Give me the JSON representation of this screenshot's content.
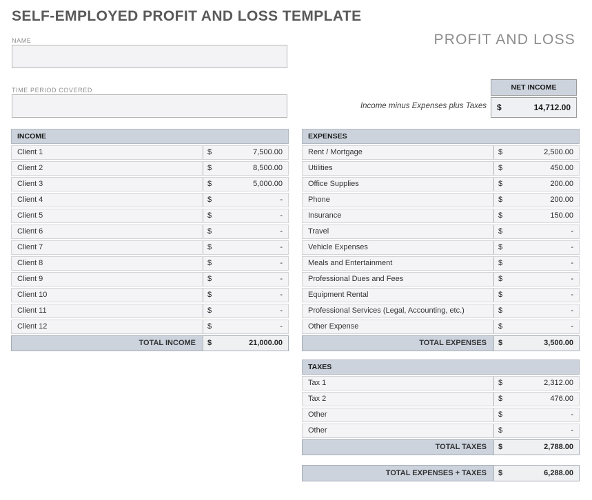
{
  "page": {
    "title": "SELF-EMPLOYED PROFIT AND LOSS TEMPLATE",
    "doc_type": "PROFIT AND LOSS"
  },
  "fields": {
    "name": {
      "label": "NAME",
      "value": ""
    },
    "time_period": {
      "label": "TIME PERIOD COVERED",
      "value": ""
    }
  },
  "net_income": {
    "header": "NET INCOME",
    "caption": "Income minus Expenses plus Taxes",
    "currency": "$",
    "value": "14,712.00"
  },
  "income": {
    "header": "INCOME",
    "rows": [
      {
        "label": "Client 1",
        "currency": "$",
        "amount": "7,500.00"
      },
      {
        "label": "Client 2",
        "currency": "$",
        "amount": "8,500.00"
      },
      {
        "label": "Client 3",
        "currency": "$",
        "amount": "5,000.00"
      },
      {
        "label": "Client 4",
        "currency": "$",
        "amount": "-"
      },
      {
        "label": "Client 5",
        "currency": "$",
        "amount": "-"
      },
      {
        "label": "Client 6",
        "currency": "$",
        "amount": "-"
      },
      {
        "label": "Client 7",
        "currency": "$",
        "amount": "-"
      },
      {
        "label": "Client 8",
        "currency": "$",
        "amount": "-"
      },
      {
        "label": "Client 9",
        "currency": "$",
        "amount": "-"
      },
      {
        "label": "Client 10",
        "currency": "$",
        "amount": "-"
      },
      {
        "label": "Client 11",
        "currency": "$",
        "amount": "-"
      },
      {
        "label": "Client 12",
        "currency": "$",
        "amount": "-"
      }
    ],
    "total": {
      "label": "TOTAL INCOME",
      "currency": "$",
      "amount": "21,000.00"
    }
  },
  "expenses": {
    "header": "EXPENSES",
    "rows": [
      {
        "label": "Rent / Mortgage",
        "currency": "$",
        "amount": "2,500.00"
      },
      {
        "label": "Utilities",
        "currency": "$",
        "amount": "450.00"
      },
      {
        "label": "Office Supplies",
        "currency": "$",
        "amount": "200.00"
      },
      {
        "label": "Phone",
        "currency": "$",
        "amount": "200.00"
      },
      {
        "label": "Insurance",
        "currency": "$",
        "amount": "150.00"
      },
      {
        "label": "Travel",
        "currency": "$",
        "amount": "-"
      },
      {
        "label": "Vehicle Expenses",
        "currency": "$",
        "amount": "-"
      },
      {
        "label": "Meals and Entertainment",
        "currency": "$",
        "amount": "-"
      },
      {
        "label": "Professional Dues and Fees",
        "currency": "$",
        "amount": "-"
      },
      {
        "label": "Equipment Rental",
        "currency": "$",
        "amount": "-"
      },
      {
        "label": "Professional Services (Legal, Accounting, etc.)",
        "currency": "$",
        "amount": "-"
      },
      {
        "label": "Other Expense",
        "currency": "$",
        "amount": "-"
      }
    ],
    "total": {
      "label": "TOTAL EXPENSES",
      "currency": "$",
      "amount": "3,500.00"
    }
  },
  "taxes": {
    "header": "TAXES",
    "rows": [
      {
        "label": "Tax 1",
        "currency": "$",
        "amount": "2,312.00"
      },
      {
        "label": "Tax 2",
        "currency": "$",
        "amount": "476.00"
      },
      {
        "label": "Other",
        "currency": "$",
        "amount": "-"
      },
      {
        "label": "Other",
        "currency": "$",
        "amount": "-"
      }
    ],
    "total": {
      "label": "TOTAL TAXES",
      "currency": "$",
      "amount": "2,788.00"
    }
  },
  "grand_total": {
    "label": "TOTAL EXPENSES + TAXES",
    "currency": "$",
    "amount": "6,288.00"
  },
  "colors": {
    "header-bg": "#ccd3dd",
    "row-bg": "#f4f4f6",
    "total-value-bg": "#eff0f2",
    "net-value-bg": "#eef0f4",
    "title-color": "#595959",
    "subtitle-color": "#8c8c8c"
  }
}
